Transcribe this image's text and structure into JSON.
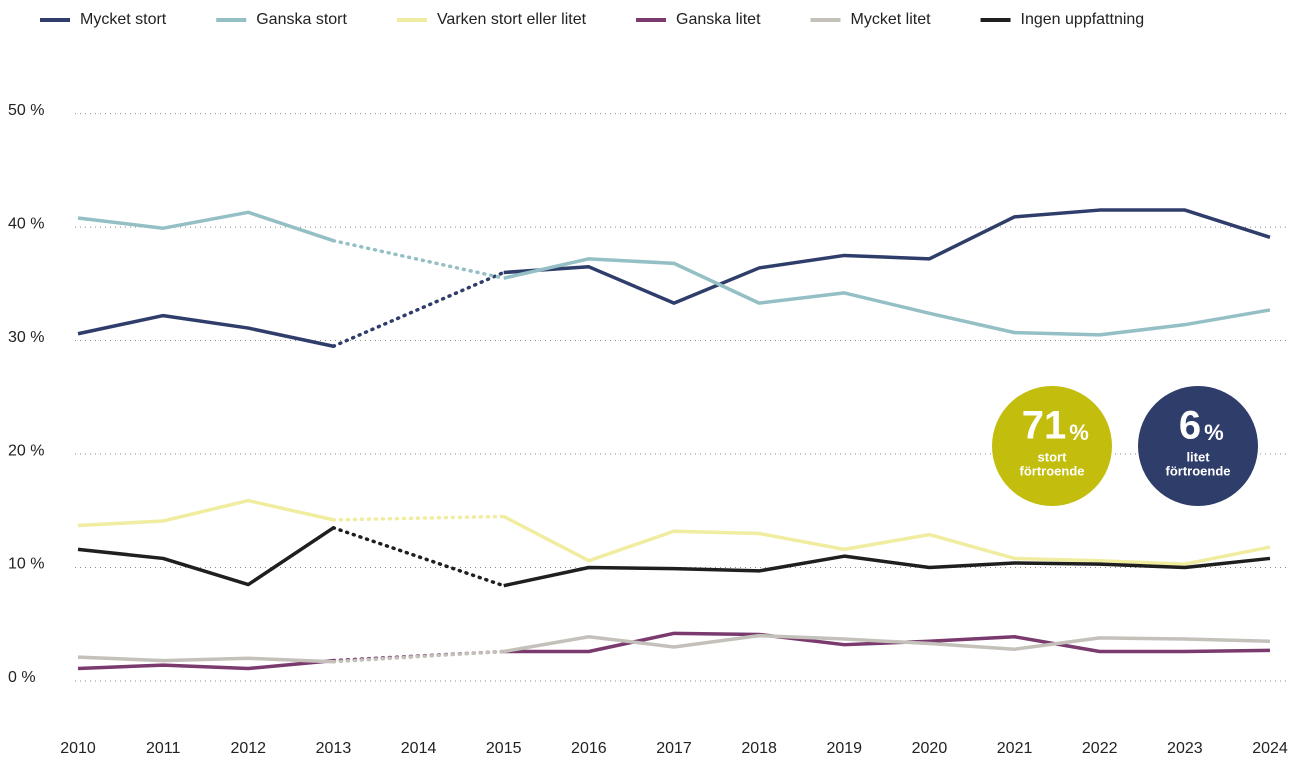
{
  "chart_data": {
    "type": "line",
    "x": [
      2010,
      2011,
      2012,
      2013,
      2014,
      2015,
      2016,
      2017,
      2018,
      2019,
      2020,
      2021,
      2022,
      2023,
      2024
    ],
    "xlim": [
      2010,
      2024
    ],
    "ylim": [
      0,
      50
    ],
    "yticks": [
      {
        "value": 0,
        "label": "0 %"
      },
      {
        "value": 10,
        "label": "10 %"
      },
      {
        "value": 20,
        "label": "20 %"
      },
      {
        "value": 30,
        "label": "30 %"
      },
      {
        "value": 40,
        "label": "40 %"
      },
      {
        "value": 50,
        "label": "50 %"
      }
    ],
    "grid": true,
    "legend": "top",
    "series": [
      {
        "name": "Mycket stort",
        "color": "#2f3d6b",
        "values": [
          30.6,
          32.2,
          31.1,
          29.5,
          null,
          36.0,
          36.5,
          33.3,
          36.4,
          37.5,
          37.2,
          40.9,
          41.5,
          41.5,
          39.1
        ]
      },
      {
        "name": "Ganska stort",
        "color": "#94bfc5",
        "values": [
          40.8,
          39.9,
          41.3,
          38.8,
          null,
          35.5,
          37.2,
          36.8,
          33.3,
          34.2,
          32.4,
          30.7,
          30.5,
          31.4,
          32.7
        ]
      },
      {
        "name": "Varken stort eller litet",
        "color": "#f0eda0",
        "values": [
          13.7,
          14.1,
          15.9,
          14.2,
          null,
          14.5,
          10.6,
          13.2,
          13.0,
          11.6,
          12.9,
          10.8,
          10.6,
          10.3,
          11.8
        ]
      },
      {
        "name": "Ganska litet",
        "color": "#7a3a6e",
        "values": [
          1.1,
          1.4,
          1.1,
          1.8,
          null,
          2.6,
          2.6,
          4.2,
          4.1,
          3.2,
          3.5,
          3.9,
          2.6,
          2.6,
          2.7
        ]
      },
      {
        "name": "Mycket litet",
        "color": "#c4c1bb",
        "values": [
          2.1,
          1.8,
          2.0,
          1.7,
          null,
          2.6,
          3.9,
          3.0,
          4.0,
          3.7,
          3.3,
          2.8,
          3.8,
          3.7,
          3.5
        ]
      },
      {
        "name": "Ingen uppfattning",
        "color": "#1f1f1f",
        "values": [
          11.6,
          10.8,
          8.5,
          13.5,
          null,
          8.4,
          10.0,
          9.9,
          9.7,
          11.0,
          10.0,
          10.4,
          10.3,
          10.0,
          10.8
        ]
      }
    ],
    "badges": [
      {
        "value": 71,
        "unit": "%",
        "lines": [
          "stort",
          "förtroende"
        ],
        "color": "#c3bd0d"
      },
      {
        "value": 6,
        "unit": "%",
        "lines": [
          "litet",
          "förtroende"
        ],
        "color": "#2f3d6b"
      }
    ]
  }
}
